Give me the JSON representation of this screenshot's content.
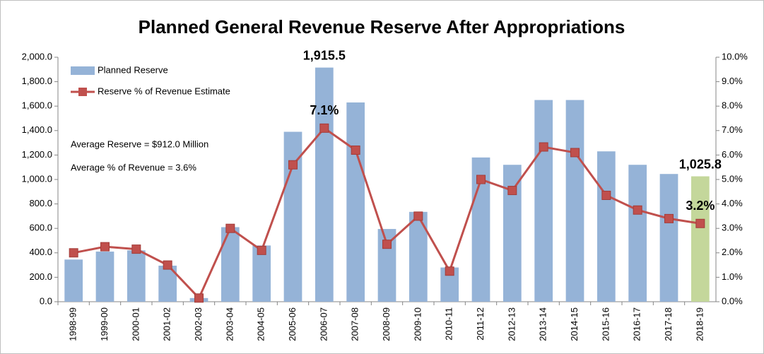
{
  "chart_data": {
    "type": "bar_line",
    "title": "Planned General Revenue Reserve After Appropriations",
    "annotations": [
      "Average Reserve = $912.0 Million",
      "Average % of Revenue = 3.6%"
    ],
    "categories": [
      "1998-99",
      "1999-00",
      "2000-01",
      "2001-02",
      "2002-03",
      "2003-04",
      "2004-05",
      "2005-06",
      "2006-07",
      "2007-08",
      "2008-09",
      "2009-10",
      "2010-11",
      "2011-12",
      "2012-13",
      "2013-14",
      "2014-15",
      "2015-16",
      "2016-17",
      "2017-18",
      "2018-19"
    ],
    "series": [
      {
        "name": "Planned Reserve",
        "type": "bar",
        "color": "#95b3d7",
        "colors": [
          "#95b3d7",
          "#95b3d7",
          "#95b3d7",
          "#95b3d7",
          "#95b3d7",
          "#95b3d7",
          "#95b3d7",
          "#95b3d7",
          "#95b3d7",
          "#95b3d7",
          "#95b3d7",
          "#95b3d7",
          "#95b3d7",
          "#95b3d7",
          "#95b3d7",
          "#95b3d7",
          "#95b3d7",
          "#95b3d7",
          "#95b3d7",
          "#95b3d7",
          "#c4d79b"
        ],
        "values": [
          345,
          410,
          420,
          295,
          30,
          610,
          460,
          1390,
          1915.5,
          1630,
          595,
          735,
          280,
          1180,
          1120,
          1650,
          1650,
          1230,
          1120,
          1045,
          1025.8
        ],
        "value_labels": [
          null,
          null,
          null,
          null,
          null,
          null,
          null,
          null,
          "1,915.5",
          null,
          null,
          null,
          null,
          null,
          null,
          null,
          null,
          null,
          null,
          null,
          "1,025.8"
        ]
      },
      {
        "name": "Reserve % of Revenue Estimate",
        "type": "line",
        "axis": "y2",
        "color": "#c0504d",
        "values": [
          2.0,
          2.25,
          2.15,
          1.5,
          0.15,
          3.0,
          2.1,
          5.6,
          7.1,
          6.2,
          2.35,
          3.5,
          1.25,
          5.0,
          4.55,
          6.33,
          6.1,
          4.35,
          3.75,
          3.4,
          3.2
        ],
        "value_labels": [
          null,
          null,
          null,
          null,
          null,
          null,
          null,
          null,
          "7.1%",
          null,
          null,
          null,
          null,
          null,
          null,
          null,
          null,
          null,
          null,
          null,
          "3.2%"
        ]
      }
    ],
    "ylim": [
      0,
      2000
    ],
    "yticks": [
      {
        "value": 0,
        "label": "0.0"
      },
      {
        "value": 200,
        "label": "200.0"
      },
      {
        "value": 400,
        "label": "400.0"
      },
      {
        "value": 600,
        "label": "600.0"
      },
      {
        "value": 800,
        "label": "800.0"
      },
      {
        "value": 1000,
        "label": "1,000.0"
      },
      {
        "value": 1200,
        "label": "1,200.0"
      },
      {
        "value": 1400,
        "label": "1,400.0"
      },
      {
        "value": 1600,
        "label": "1,600.0"
      },
      {
        "value": 1800,
        "label": "1,800.0"
      },
      {
        "value": 2000,
        "label": "2,000.0"
      }
    ],
    "y2lim": [
      0,
      10
    ],
    "y2ticks": [
      {
        "value": 0,
        "label": "0.0%"
      },
      {
        "value": 1,
        "label": "1.0%"
      },
      {
        "value": 2,
        "label": "2.0%"
      },
      {
        "value": 3,
        "label": "3.0%"
      },
      {
        "value": 4,
        "label": "4.0%"
      },
      {
        "value": 5,
        "label": "5.0%"
      },
      {
        "value": 6,
        "label": "6.0%"
      },
      {
        "value": 7,
        "label": "7.0%"
      },
      {
        "value": 8,
        "label": "8.0%"
      },
      {
        "value": 9,
        "label": "9.0%"
      },
      {
        "value": 10,
        "label": "10.0%"
      }
    ],
    "grid": false,
    "legend": "top-left"
  }
}
